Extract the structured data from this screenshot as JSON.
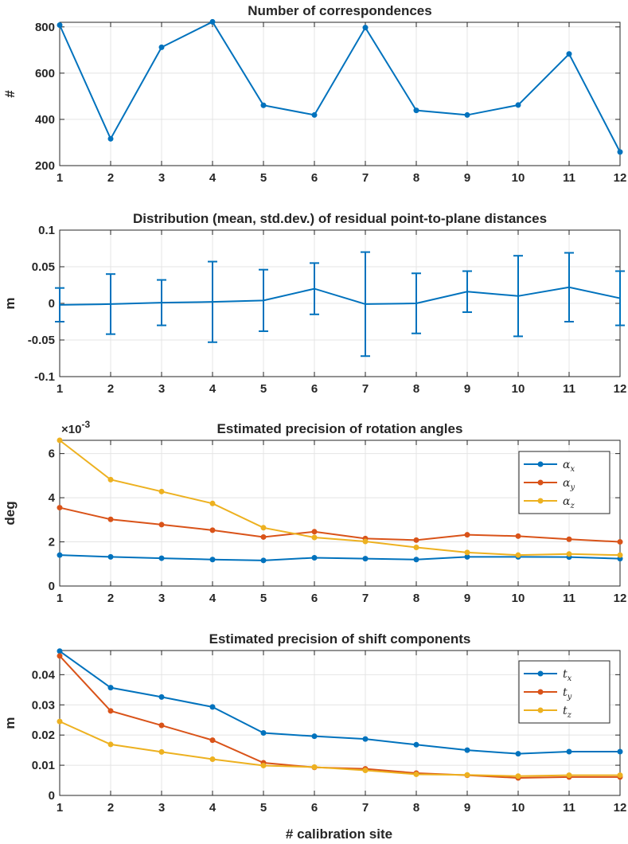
{
  "figure": {
    "xlabel": "# calibration site"
  },
  "chart_data": [
    {
      "type": "line",
      "title": "Number of correspondences",
      "ylabel": "#",
      "x": [
        1,
        2,
        3,
        4,
        5,
        6,
        7,
        8,
        9,
        10,
        11,
        12
      ],
      "xlim": [
        1,
        12
      ],
      "ylim": [
        200,
        820
      ],
      "yticks": [
        200,
        400,
        600,
        800
      ],
      "ytick_labels": [
        "200",
        "400",
        "600",
        "800"
      ],
      "grid": true,
      "series": [
        {
          "name": "correspondences",
          "color": "#0072BD",
          "values": [
            808,
            316,
            712,
            822,
            461,
            419,
            797,
            439,
            419,
            462,
            683,
            259
          ]
        }
      ]
    },
    {
      "type": "line",
      "title": "Distribution (mean, std.dev.) of residual point-to-plane distances",
      "ylabel": "m",
      "x": [
        1,
        2,
        3,
        4,
        5,
        6,
        7,
        8,
        9,
        10,
        11,
        12
      ],
      "xlim": [
        1,
        12
      ],
      "ylim": [
        -0.1,
        0.1
      ],
      "yticks": [
        -0.1,
        -0.05,
        0,
        0.05,
        0.1
      ],
      "ytick_labels": [
        "-0.1",
        "-0.05",
        "0",
        "0.05",
        "0.1"
      ],
      "grid": true,
      "series": [
        {
          "name": "mean",
          "color": "#0072BD",
          "values": [
            -0.002,
            -0.001,
            0.001,
            0.002,
            0.004,
            0.02,
            -0.001,
            0.0,
            0.016,
            0.01,
            0.022,
            0.007
          ],
          "error": [
            0.023,
            0.041,
            0.031,
            0.055,
            0.042,
            0.035,
            0.071,
            0.041,
            0.028,
            0.055,
            0.047,
            0.037
          ]
        }
      ]
    },
    {
      "type": "line",
      "title": "Estimated precision of rotation angles",
      "ylabel": "deg",
      "exponent_label": "×10",
      "exponent_power": "-3",
      "x": [
        1,
        2,
        3,
        4,
        5,
        6,
        7,
        8,
        9,
        10,
        11,
        12
      ],
      "xlim": [
        1,
        12
      ],
      "ylim": [
        0,
        6.6
      ],
      "yticks": [
        0,
        2,
        4,
        6
      ],
      "ytick_labels": [
        "0",
        "2",
        "4",
        "6"
      ],
      "grid": true,
      "legend_position": "top-right",
      "series": [
        {
          "name": "α",
          "subscript": "x",
          "color": "#0072BD",
          "values": [
            1.4,
            1.32,
            1.26,
            1.2,
            1.16,
            1.28,
            1.24,
            1.2,
            1.32,
            1.32,
            1.31,
            1.24
          ]
        },
        {
          "name": "α",
          "subscript": "y",
          "color": "#D95319",
          "values": [
            3.55,
            3.02,
            2.78,
            2.53,
            2.22,
            2.46,
            2.15,
            2.08,
            2.32,
            2.26,
            2.12,
            2.0
          ]
        },
        {
          "name": "α",
          "subscript": "z",
          "color": "#EDB120",
          "values": [
            6.6,
            4.82,
            4.28,
            3.74,
            2.64,
            2.2,
            2.02,
            1.75,
            1.52,
            1.4,
            1.45,
            1.4
          ]
        }
      ]
    },
    {
      "type": "line",
      "title": "Estimated precision of shift components",
      "ylabel": "m",
      "x": [
        1,
        2,
        3,
        4,
        5,
        6,
        7,
        8,
        9,
        10,
        11,
        12
      ],
      "xlim": [
        1,
        12
      ],
      "ylim": [
        0,
        0.048
      ],
      "yticks": [
        0,
        0.01,
        0.02,
        0.03,
        0.04
      ],
      "ytick_labels": [
        "0",
        "0.01",
        "0.02",
        "0.03",
        "0.04"
      ],
      "grid": true,
      "legend_position": "top-right",
      "series": [
        {
          "name": "t",
          "subscript": "x",
          "color": "#0072BD",
          "values": [
            0.0478,
            0.0357,
            0.0326,
            0.0293,
            0.0207,
            0.0196,
            0.0187,
            0.0168,
            0.015,
            0.0138,
            0.0145,
            0.0145
          ]
        },
        {
          "name": "t",
          "subscript": "y",
          "color": "#D95319",
          "values": [
            0.0462,
            0.028,
            0.0232,
            0.0183,
            0.0108,
            0.0093,
            0.0088,
            0.0074,
            0.0067,
            0.0058,
            0.0061,
            0.0061
          ]
        },
        {
          "name": "t",
          "subscript": "z",
          "color": "#EDB120",
          "values": [
            0.0245,
            0.0169,
            0.0144,
            0.012,
            0.0099,
            0.0094,
            0.0083,
            0.007,
            0.0068,
            0.0064,
            0.0067,
            0.0067
          ]
        }
      ]
    }
  ]
}
